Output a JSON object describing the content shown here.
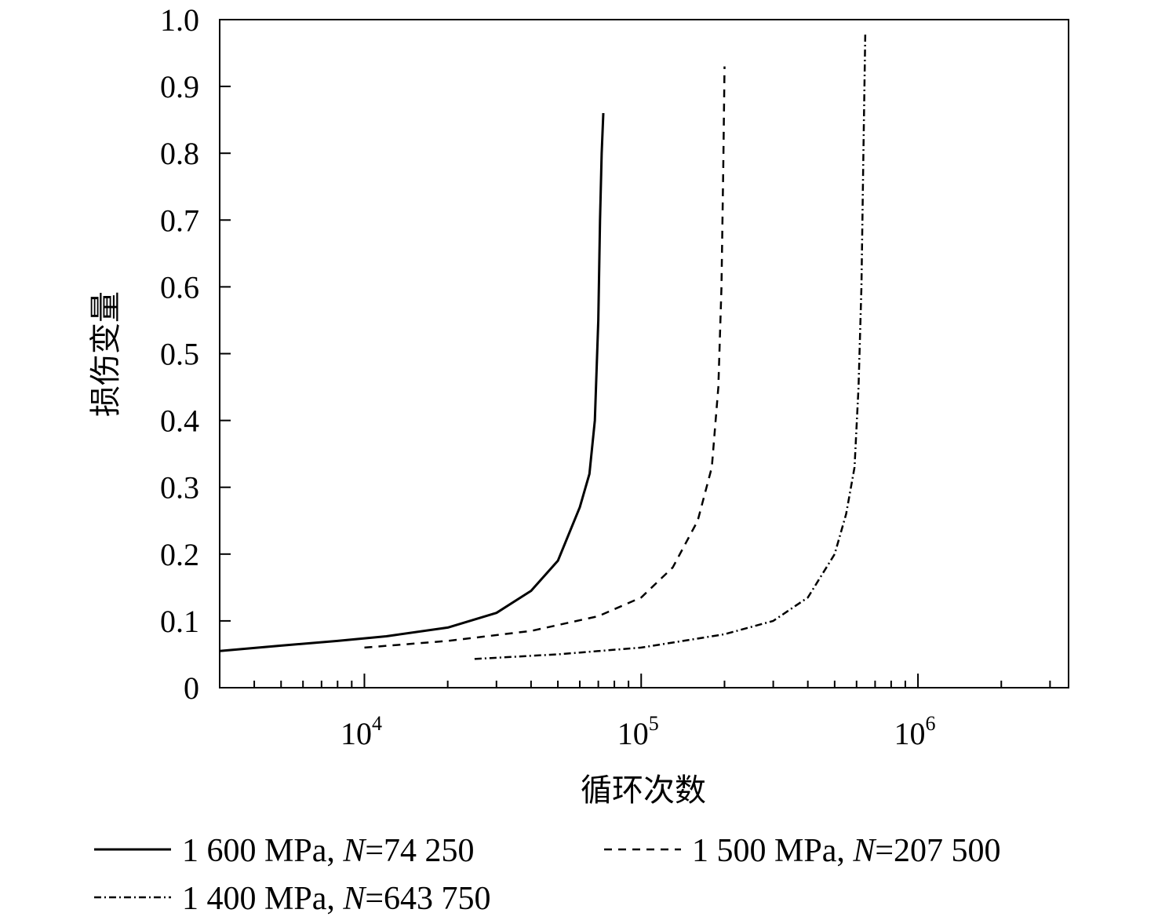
{
  "chart_data": {
    "type": "line",
    "title": "",
    "xlabel": "循环次数",
    "ylabel": "损伤变量",
    "xscale": "log",
    "xlim": [
      3000,
      3500000
    ],
    "ylim": [
      0,
      1.0
    ],
    "x_major_ticks": [
      {
        "value": 10000,
        "base": "10",
        "exp": "4"
      },
      {
        "value": 100000,
        "base": "10",
        "exp": "5"
      },
      {
        "value": 1000000,
        "base": "10",
        "exp": "6"
      }
    ],
    "y_ticks": [
      {
        "value": 0,
        "label": "0"
      },
      {
        "value": 0.1,
        "label": "0.1"
      },
      {
        "value": 0.2,
        "label": "0.2"
      },
      {
        "value": 0.3,
        "label": "0.3"
      },
      {
        "value": 0.4,
        "label": "0.4"
      },
      {
        "value": 0.5,
        "label": "0.5"
      },
      {
        "value": 0.6,
        "label": "0.6"
      },
      {
        "value": 0.7,
        "label": "0.7"
      },
      {
        "value": 0.8,
        "label": "0.8"
      },
      {
        "value": 0.9,
        "label": "0.9"
      },
      {
        "value": 1.0,
        "label": "1.0"
      }
    ],
    "grid": false,
    "legend_position": "bottom",
    "series": [
      {
        "legend_prefix": "1 600 MPa, ",
        "legend_italic": "N",
        "legend_suffix": "=74 250",
        "dash": "solid",
        "color": "#000000",
        "x": [
          3000,
          5000,
          8000,
          12000,
          20000,
          30000,
          40000,
          50000,
          60000,
          65000,
          68000,
          70000,
          71000,
          72000,
          73000
        ],
        "y": [
          0.055,
          0.063,
          0.07,
          0.077,
          0.09,
          0.112,
          0.145,
          0.19,
          0.27,
          0.32,
          0.4,
          0.55,
          0.7,
          0.8,
          0.86
        ]
      },
      {
        "legend_prefix": "1 500 MPa, ",
        "legend_italic": "N",
        "legend_suffix": "=207 500",
        "dash": "dashed",
        "color": "#000000",
        "x": [
          10000,
          20000,
          40000,
          70000,
          100000,
          130000,
          160000,
          180000,
          190000,
          195000,
          198000,
          200000
        ],
        "y": [
          0.06,
          0.07,
          0.085,
          0.107,
          0.135,
          0.18,
          0.25,
          0.33,
          0.45,
          0.6,
          0.78,
          0.93
        ]
      },
      {
        "legend_prefix": "1 400 MPa, ",
        "legend_italic": "N",
        "legend_suffix": "=643 750",
        "dash": "dashdot",
        "color": "#000000",
        "x": [
          25000,
          50000,
          100000,
          200000,
          300000,
          400000,
          500000,
          550000,
          590000,
          610000,
          625000,
          635000,
          645000
        ],
        "y": [
          0.043,
          0.05,
          0.06,
          0.08,
          0.1,
          0.135,
          0.2,
          0.26,
          0.33,
          0.45,
          0.6,
          0.8,
          0.98
        ]
      }
    ]
  }
}
